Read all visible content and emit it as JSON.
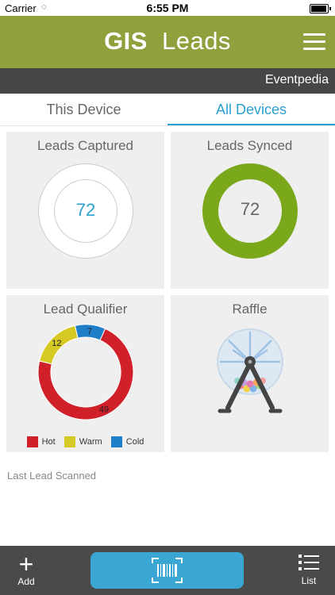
{
  "status_bar": {
    "carrier": "Carrier",
    "time": "6:55 PM"
  },
  "header": {
    "title_bold": "GIS",
    "title_light": "Leads",
    "organization": "Eventpedia"
  },
  "tabs": [
    {
      "label": "This Device",
      "active": false
    },
    {
      "label": "All Devices",
      "active": true
    }
  ],
  "cards": {
    "leads_captured": {
      "title": "Leads Captured",
      "count": "72"
    },
    "leads_synced": {
      "title": "Leads Synced",
      "count": "72"
    },
    "lead_qualifier": {
      "title": "Lead Qualifier",
      "legend": [
        {
          "label": "Hot",
          "color": "#d0202a"
        },
        {
          "label": "Warm",
          "color": "#d6c924"
        },
        {
          "label": "Cold",
          "color": "#1e7ec8"
        }
      ]
    },
    "raffle": {
      "title": "Raffle"
    }
  },
  "chart_data": {
    "type": "pie",
    "categories": [
      "Hot",
      "Warm",
      "Cold"
    ],
    "values": [
      49,
      12,
      7
    ],
    "colors": [
      "#d0202a",
      "#d6c924",
      "#1e7ec8"
    ],
    "title": "Lead Qualifier"
  },
  "last_lead": {
    "label": "Last Lead Scanned"
  },
  "bottom_bar": {
    "add_label": "Add",
    "list_label": "List"
  },
  "colors": {
    "brand_green": "#8fa03d",
    "accent_blue": "#2aa0d0",
    "synced_green": "#7aa81a",
    "dark_bar": "#464646"
  }
}
